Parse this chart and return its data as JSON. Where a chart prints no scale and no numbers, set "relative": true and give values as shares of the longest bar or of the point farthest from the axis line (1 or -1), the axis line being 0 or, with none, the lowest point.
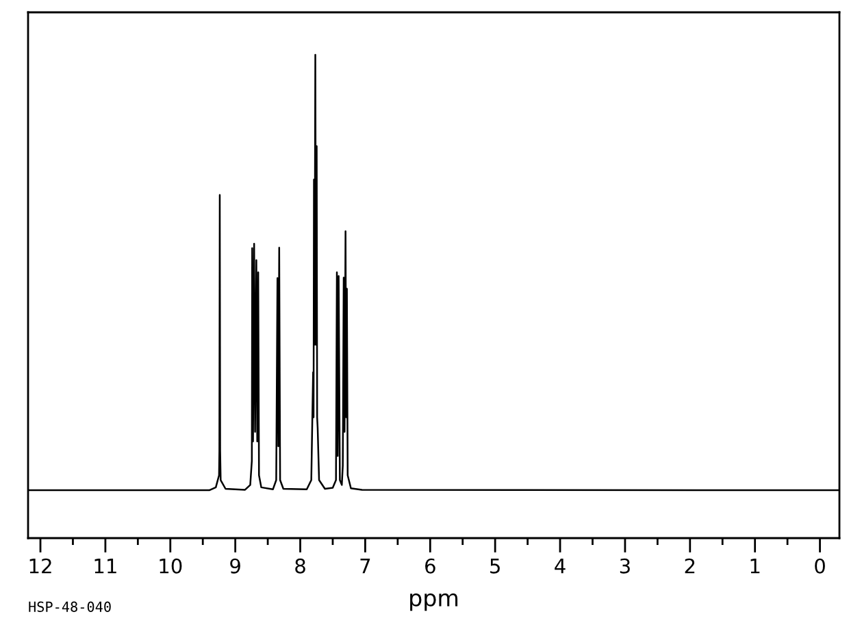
{
  "chart_data": {
    "type": "line",
    "relative": true,
    "color": "#000000",
    "xlabel": "ppm",
    "tick_labels": "x",
    "annotations": [
      "HSP-48-040"
    ],
    "xlim": [
      12.19,
      -0.3
    ],
    "xticks": [
      12,
      {
        "value": 11.5,
        "label": null
      },
      11,
      {
        "value": 10.5,
        "label": null
      },
      10,
      {
        "value": 9.5,
        "label": null
      },
      9,
      {
        "value": 8.5,
        "label": null
      },
      8,
      {
        "value": 7.5,
        "label": null
      },
      7,
      {
        "value": 6.5,
        "label": null
      },
      6,
      {
        "value": 5.5,
        "label": null
      },
      5,
      {
        "value": 4.5,
        "label": null
      },
      4,
      {
        "value": 3.5,
        "label": null
      },
      3,
      {
        "value": 2.5,
        "label": null
      },
      2,
      {
        "value": 1.5,
        "label": null
      },
      1,
      {
        "value": 0.5,
        "label": null
      },
      0
    ],
    "x": [
      12.19,
      9.4,
      9.3,
      9.25,
      9.245,
      9.239,
      9.233,
      9.225,
      9.15,
      8.85,
      8.77,
      8.745,
      8.74,
      8.727,
      8.71,
      8.695,
      8.676,
      8.662,
      8.647,
      8.635,
      8.6,
      8.42,
      8.37,
      8.351,
      8.338,
      8.324,
      8.31,
      8.26,
      7.9,
      7.83,
      7.802,
      7.795,
      7.789,
      7.78,
      7.768,
      7.757,
      7.747,
      7.74,
      7.732,
      7.71,
      7.62,
      7.5,
      7.45,
      7.436,
      7.423,
      7.409,
      7.39,
      7.36,
      7.345,
      7.331,
      7.318,
      7.303,
      7.292,
      7.282,
      7.27,
      7.22,
      7.05,
      -0.3
    ],
    "values": [
      0.099,
      0.099,
      0.105,
      0.13,
      0.18,
      0.71,
      0.18,
      0.12,
      0.102,
      0.1,
      0.11,
      0.16,
      0.6,
      0.2,
      0.609,
      0.22,
      0.575,
      0.2,
      0.55,
      0.13,
      0.105,
      0.101,
      0.12,
      0.538,
      0.19,
      0.601,
      0.12,
      0.102,
      0.101,
      0.12,
      0.343,
      0.25,
      0.742,
      0.4,
      1.0,
      0.4,
      0.811,
      0.25,
      0.228,
      0.12,
      0.102,
      0.104,
      0.12,
      0.55,
      0.17,
      0.542,
      0.12,
      0.11,
      0.15,
      0.539,
      0.22,
      0.635,
      0.25,
      0.516,
      0.13,
      0.103,
      0.1,
      0.099
    ]
  }
}
